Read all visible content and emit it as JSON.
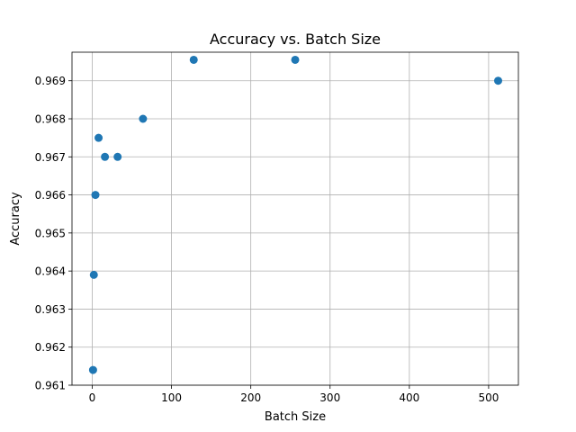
{
  "chart_data": {
    "type": "scatter",
    "title": "Accuracy vs. Batch Size",
    "xlabel": "Batch Size",
    "ylabel": "Accuracy",
    "xlim": [
      -25.55,
      537.55
    ],
    "ylim": [
      0.961,
      0.96975
    ],
    "xticks": [
      0,
      100,
      200,
      300,
      400,
      500
    ],
    "yticks": [
      0.961,
      0.962,
      0.963,
      0.964,
      0.965,
      0.966,
      0.967,
      0.968,
      0.969
    ],
    "grid": true,
    "series": [
      {
        "color": "#1f77b4",
        "points": [
          {
            "x": 1,
            "y": 0.9614
          },
          {
            "x": 2,
            "y": 0.9639
          },
          {
            "x": 4,
            "y": 0.966
          },
          {
            "x": 8,
            "y": 0.9675
          },
          {
            "x": 16,
            "y": 0.967
          },
          {
            "x": 32,
            "y": 0.967
          },
          {
            "x": 64,
            "y": 0.968
          },
          {
            "x": 128,
            "y": 0.96955
          },
          {
            "x": 256,
            "y": 0.96955
          },
          {
            "x": 512,
            "y": 0.969
          }
        ]
      }
    ]
  }
}
